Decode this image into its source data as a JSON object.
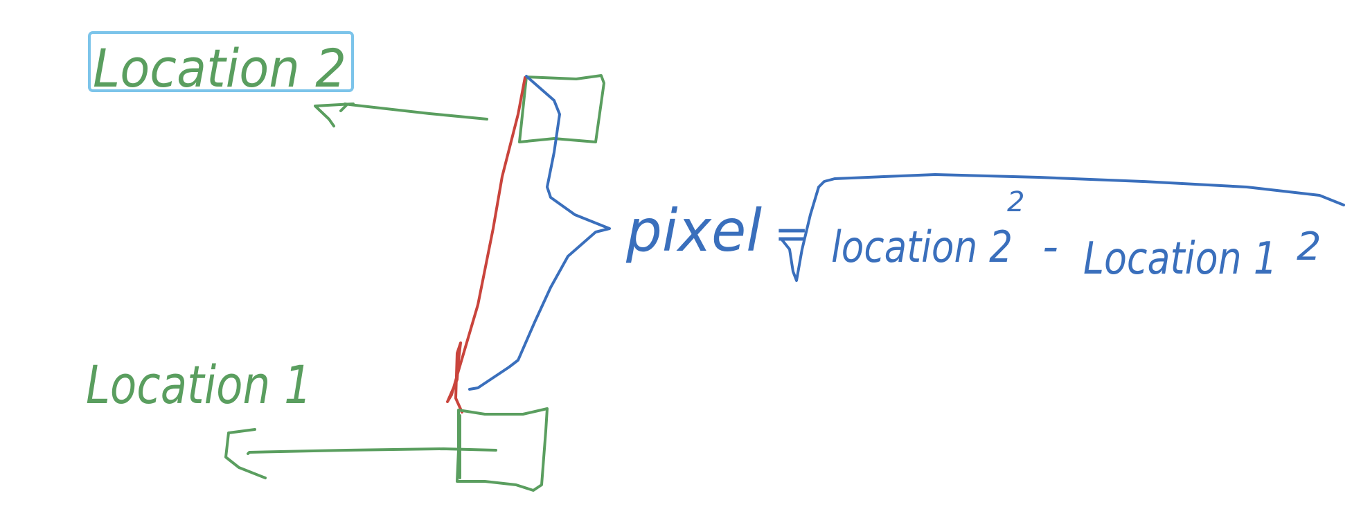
{
  "colors": {
    "green": "#5a9e5f",
    "blue": "#3a6fbc",
    "red": "#c9443c",
    "selection": "#7cc4ea",
    "background": "#ffffff"
  },
  "labels": {
    "location2": "Location 2",
    "location1": "Location 1"
  },
  "formula": {
    "lhs": "pixel",
    "equals": "=",
    "term1": "location 2",
    "term1_exp": "2",
    "minus": "-",
    "term2": "Location 1",
    "term2_exp": "2"
  }
}
